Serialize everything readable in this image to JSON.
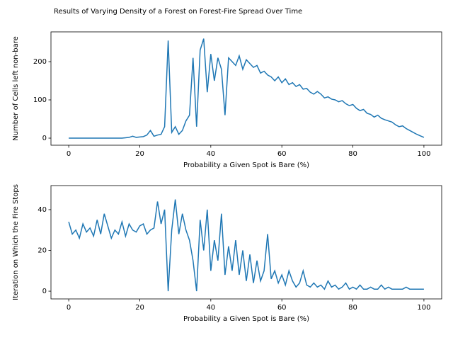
{
  "title": "Results of Varying Density of a Forest on Forest-Fire Spread Over Time",
  "chart_data": [
    {
      "type": "line",
      "xlabel": "Probability a Given Spot is Bare (%)",
      "ylabel": "Number of Cells left non-bare",
      "x": [
        0,
        1,
        2,
        3,
        4,
        5,
        6,
        7,
        8,
        9,
        10,
        11,
        12,
        13,
        14,
        15,
        16,
        17,
        18,
        19,
        20,
        21,
        22,
        23,
        24,
        25,
        26,
        27,
        28,
        29,
        30,
        31,
        32,
        33,
        34,
        35,
        36,
        37,
        38,
        39,
        40,
        41,
        42,
        43,
        44,
        45,
        46,
        47,
        48,
        49,
        50,
        51,
        52,
        53,
        54,
        55,
        56,
        57,
        58,
        59,
        60,
        61,
        62,
        63,
        64,
        65,
        66,
        67,
        68,
        69,
        70,
        71,
        72,
        73,
        74,
        75,
        76,
        77,
        78,
        79,
        80,
        81,
        82,
        83,
        84,
        85,
        86,
        87,
        88,
        89,
        90,
        91,
        92,
        93,
        94,
        95,
        96,
        97,
        98,
        99,
        100
      ],
      "values": [
        0,
        0,
        0,
        0,
        0,
        0,
        0,
        0,
        0,
        0,
        0,
        0,
        0,
        0,
        0,
        0,
        1,
        2,
        5,
        2,
        3,
        4,
        8,
        20,
        5,
        8,
        10,
        30,
        255,
        15,
        30,
        10,
        20,
        45,
        60,
        210,
        30,
        230,
        260,
        120,
        220,
        150,
        210,
        180,
        60,
        210,
        200,
        190,
        215,
        180,
        205,
        195,
        185,
        190,
        170,
        175,
        165,
        160,
        150,
        160,
        145,
        155,
        140,
        145,
        135,
        140,
        128,
        130,
        120,
        115,
        122,
        115,
        105,
        108,
        102,
        100,
        95,
        98,
        90,
        85,
        88,
        78,
        72,
        75,
        65,
        62,
        55,
        60,
        52,
        48,
        45,
        42,
        35,
        30,
        32,
        25,
        20,
        15,
        10,
        6,
        2
      ],
      "color": "#1f77b4",
      "xlim": [
        -5,
        105
      ],
      "ylim": [
        -18.5,
        277.8
      ],
      "xticks": [
        0,
        20,
        40,
        60,
        80,
        100
      ],
      "yticks": [
        0,
        100,
        200
      ]
    },
    {
      "type": "line",
      "xlabel": "Probability a Given Spot is Bare (%)",
      "ylabel": "Iteration on Which the Fire Stops",
      "x": [
        0,
        1,
        2,
        3,
        4,
        5,
        6,
        7,
        8,
        9,
        10,
        11,
        12,
        13,
        14,
        15,
        16,
        17,
        18,
        19,
        20,
        21,
        22,
        23,
        24,
        25,
        26,
        27,
        28,
        29,
        30,
        31,
        32,
        33,
        34,
        35,
        36,
        37,
        38,
        39,
        40,
        41,
        42,
        43,
        44,
        45,
        46,
        47,
        48,
        49,
        50,
        51,
        52,
        53,
        54,
        55,
        56,
        57,
        58,
        59,
        60,
        61,
        62,
        63,
        64,
        65,
        66,
        67,
        68,
        69,
        70,
        71,
        72,
        73,
        74,
        75,
        76,
        77,
        78,
        79,
        80,
        81,
        82,
        83,
        84,
        85,
        86,
        87,
        88,
        89,
        90,
        91,
        92,
        93,
        94,
        95,
        96,
        97,
        98,
        99,
        100
      ],
      "values": [
        34,
        28,
        30,
        26,
        33,
        29,
        31,
        27,
        35,
        28,
        38,
        32,
        26,
        30,
        28,
        34,
        27,
        33,
        30,
        29,
        32,
        33,
        28,
        30,
        31,
        44,
        33,
        40,
        0,
        30,
        45,
        28,
        38,
        30,
        25,
        15,
        0,
        35,
        20,
        40,
        10,
        25,
        15,
        38,
        8,
        22,
        10,
        25,
        8,
        20,
        5,
        18,
        4,
        15,
        5,
        10,
        28,
        6,
        10,
        4,
        8,
        3,
        10,
        5,
        2,
        4,
        10,
        3,
        2,
        4,
        2,
        3,
        1,
        5,
        2,
        3,
        1,
        2,
        4,
        1,
        2,
        1,
        3,
        1,
        1,
        2,
        1,
        1,
        3,
        1,
        2,
        1,
        1,
        1,
        1,
        2,
        1,
        1,
        1,
        1,
        1
      ],
      "color": "#1f77b4",
      "xlim": [
        -5,
        105
      ],
      "ylim": [
        -3.8,
        51.8
      ],
      "xticks": [
        0,
        20,
        40,
        60,
        80,
        100
      ],
      "yticks": [
        0,
        20,
        40
      ]
    }
  ]
}
